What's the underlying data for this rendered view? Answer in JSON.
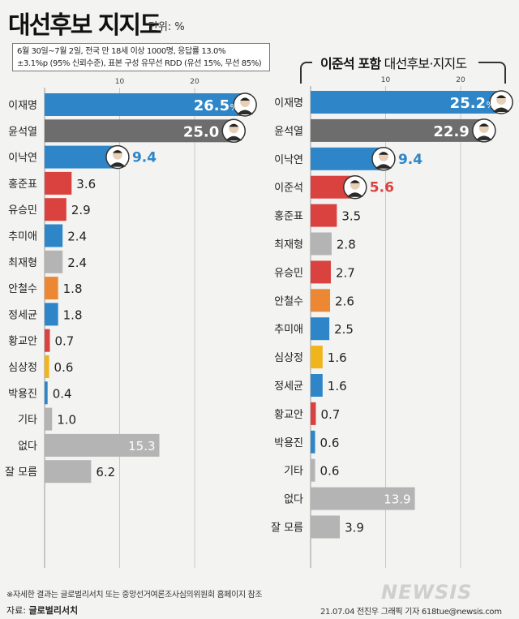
{
  "title": "대선후보 지지도",
  "unit_label": "단위: %",
  "survey_note": {
    "line1": "6월 30일~7월 2일, 전국 만 18세 이상 1000명, 응답률 13.0%",
    "line2": "±3.1%p (95% 신뢰수준), 표본 구성 유무선 RDD (유선 15%, 무선 85%)"
  },
  "right_title": {
    "bold": "이준석 포함",
    "rest": "대선후보·지지도"
  },
  "footnote": "※자세한 결과는 글로벌리서치 또는 중앙선거여론조사심의위원회 홈페이지 참조",
  "source": {
    "prefix": "자료:",
    "name": "글로벌리서치"
  },
  "logo_text": "NEWSIS",
  "credit": "21.07.04  전진우  그래픽  기자  618tue@newsis.com",
  "colors": {
    "blue": "#2e86c8",
    "dark": "#6d6d6d",
    "red": "#d9423f",
    "gray": "#b4b4b4",
    "orange": "#ec8733",
    "yellow": "#f0b41c"
  },
  "chart_data": [
    {
      "type": "bar",
      "orientation": "horizontal",
      "xlim": [
        0,
        30
      ],
      "tick_labels": [
        "10",
        "20"
      ],
      "ticks": [
        10,
        20
      ],
      "categories": [
        "이재명",
        "윤석열",
        "이낙연",
        "홍준표",
        "유승민",
        "추미애",
        "최재형",
        "안철수",
        "정세균",
        "황교안",
        "심상정",
        "박용진",
        "기타",
        "없다",
        "잘 모름"
      ],
      "values": [
        26.5,
        25.0,
        9.4,
        3.6,
        2.9,
        2.4,
        2.4,
        1.8,
        1.8,
        0.7,
        0.6,
        0.4,
        1.0,
        15.3,
        6.2
      ],
      "value_labels": [
        "26.5",
        "25.0",
        "9.4",
        "3.6",
        "2.9",
        "2.4",
        "2.4",
        "1.8",
        "1.8",
        "0.7",
        "0.6",
        "0.4",
        "1.0",
        "15.3",
        "6.2"
      ],
      "colors": [
        "blue",
        "dark",
        "blue",
        "red",
        "red",
        "blue",
        "gray",
        "orange",
        "blue",
        "red",
        "yellow",
        "blue",
        "gray",
        "gray",
        "gray"
      ],
      "portraits": [
        "이재명",
        "윤석열",
        "이낙연"
      ]
    },
    {
      "type": "bar",
      "orientation": "horizontal",
      "xlim": [
        0,
        30
      ],
      "tick_labels": [
        "10",
        "20"
      ],
      "ticks": [
        10,
        20
      ],
      "categories": [
        "이재명",
        "윤석열",
        "이낙연",
        "이준석",
        "홍준표",
        "최재형",
        "유승민",
        "안철수",
        "추미애",
        "심상정",
        "정세균",
        "황교안",
        "박용진",
        "기타",
        "없다",
        "잘 모름"
      ],
      "values": [
        25.2,
        22.9,
        9.4,
        5.6,
        3.5,
        2.8,
        2.7,
        2.6,
        2.5,
        1.6,
        1.6,
        0.7,
        0.6,
        0.6,
        13.9,
        3.9
      ],
      "value_labels": [
        "25.2",
        "22.9",
        "9.4",
        "5.6",
        "3.5",
        "2.8",
        "2.7",
        "2.6",
        "2.5",
        "1.6",
        "1.6",
        "0.7",
        "0.6",
        "0.6",
        "13.9",
        "3.9"
      ],
      "colors": [
        "blue",
        "dark",
        "blue",
        "red",
        "red",
        "gray",
        "red",
        "orange",
        "blue",
        "yellow",
        "blue",
        "red",
        "blue",
        "gray",
        "gray",
        "gray"
      ],
      "portraits": [
        "이재명",
        "윤석열",
        "이낙연",
        "이준석"
      ]
    }
  ]
}
